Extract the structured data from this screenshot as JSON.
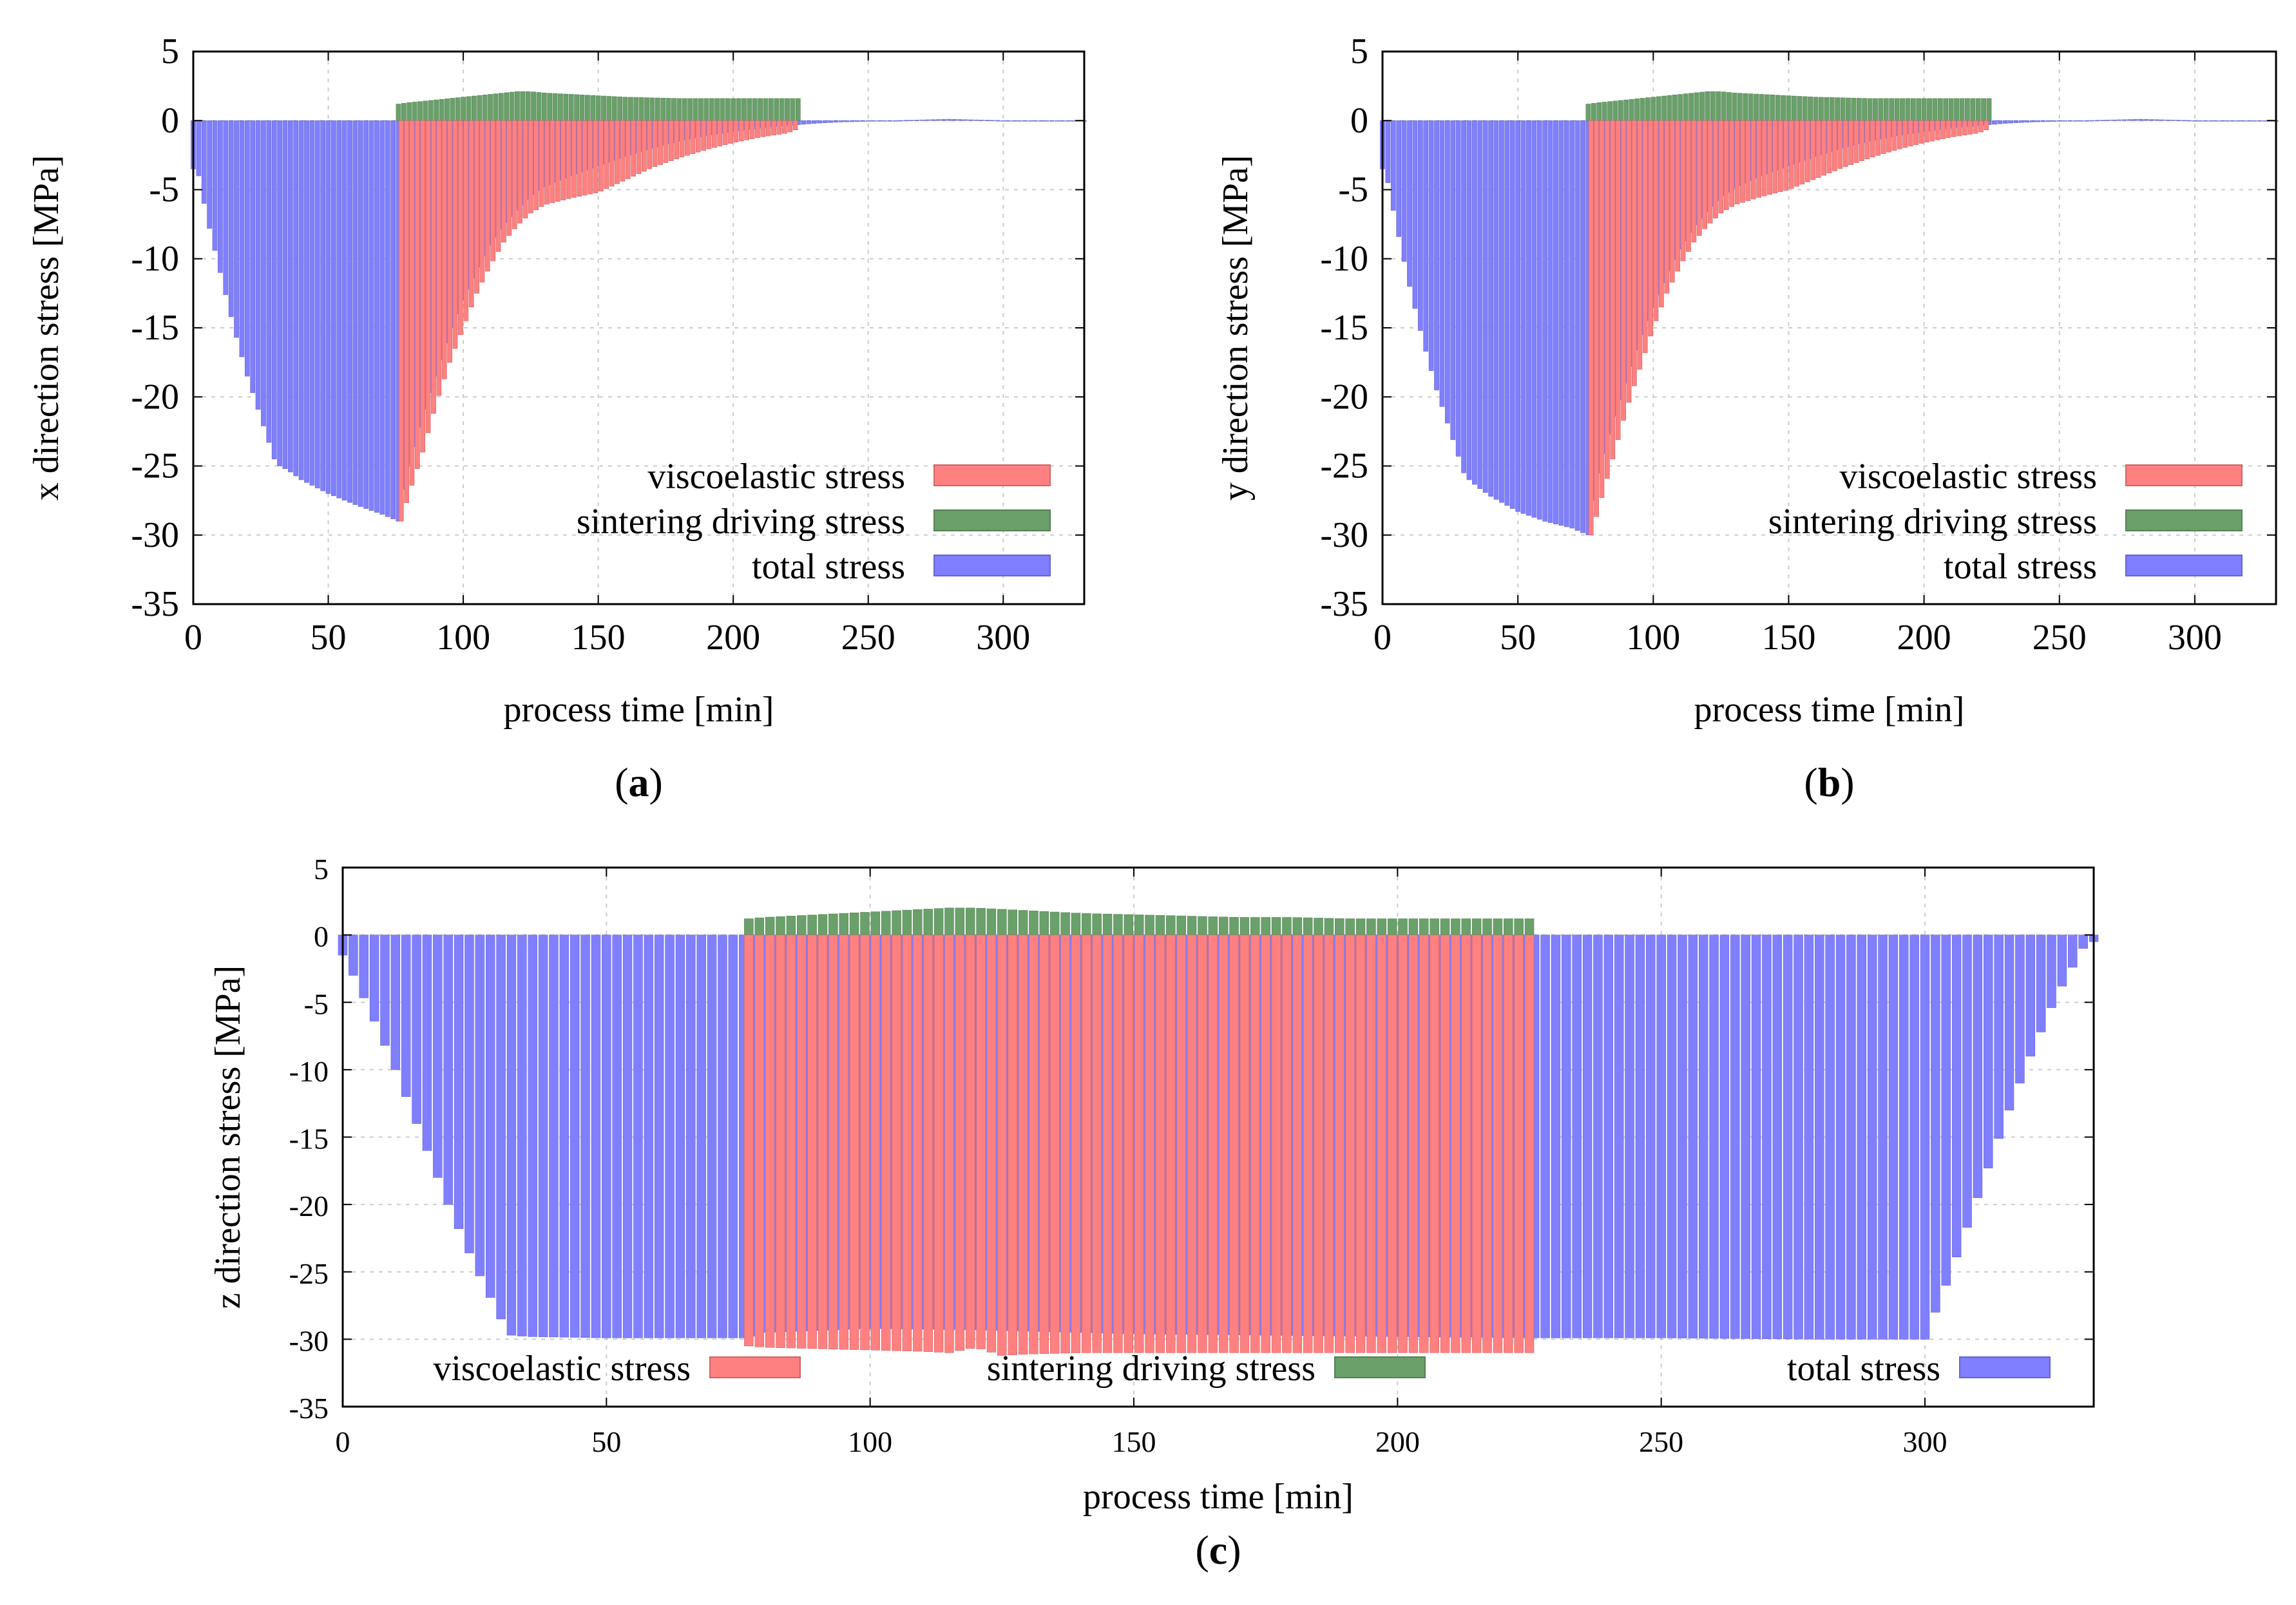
{
  "chart_data": [
    {
      "type": "area",
      "panel_label": "a",
      "xlabel": "process time [min]",
      "ylabel": "x direction stress [MPa]",
      "xlim": [
        0,
        330
      ],
      "ylim": [
        -35,
        5
      ],
      "xticks": [
        0,
        50,
        100,
        150,
        200,
        250,
        300
      ],
      "yticks": [
        5,
        0,
        -5,
        -10,
        -15,
        -20,
        -25,
        -30,
        -35
      ],
      "grid": true,
      "legend_position": "bottom-right",
      "series": [
        {
          "name": "viscoelastic stress",
          "color": "#ff8080",
          "x": [
            77,
            80,
            85,
            90,
            95,
            100,
            105,
            110,
            115,
            120,
            125,
            130,
            140,
            150,
            160,
            170,
            180,
            190,
            200,
            210,
            220,
            224
          ],
          "y": [
            -29,
            -27,
            -24,
            -20.5,
            -17.5,
            -15,
            -12.5,
            -10.5,
            -8.8,
            -7.6,
            -6.7,
            -6.1,
            -5.6,
            -5.2,
            -4.3,
            -3.4,
            -2.7,
            -2.1,
            -1.6,
            -1.2,
            -0.9,
            -0.6
          ]
        },
        {
          "name": "sintering driving stress",
          "color": "#6aa06a",
          "x": [
            76,
            80,
            90,
            100,
            110,
            120,
            125,
            130,
            140,
            150,
            160,
            180,
            200,
            224
          ],
          "y": [
            1.2,
            1.3,
            1.5,
            1.7,
            1.9,
            2.1,
            2.1,
            2.0,
            1.9,
            1.8,
            1.7,
            1.6,
            1.6,
            1.6
          ]
        },
        {
          "name": "total stress",
          "color": "#7f7fff",
          "x": [
            0,
            2,
            5,
            10,
            15,
            20,
            25,
            30,
            32,
            35,
            40,
            50,
            60,
            70,
            76,
            77,
            80,
            85,
            90,
            95,
            100,
            105,
            110,
            115,
            120,
            125,
            130,
            140,
            150,
            160,
            170,
            180,
            190,
            200,
            210,
            220,
            224,
            230,
            240,
            250,
            260,
            270,
            280,
            290,
            300,
            330
          ],
          "y": [
            -3.5,
            -4,
            -7,
            -11,
            -15,
            -18.5,
            -21.5,
            -24.5,
            -25,
            -25.3,
            -26,
            -27,
            -27.8,
            -28.5,
            -29,
            -27.5,
            -25,
            -21.5,
            -18.5,
            -15.5,
            -13,
            -11,
            -9,
            -7.6,
            -6.5,
            -5.5,
            -4.8,
            -4,
            -3.3,
            -2.6,
            -2,
            -1.5,
            -1.1,
            -0.8,
            -0.55,
            -0.35,
            -0.3,
            -0.2,
            -0.1,
            -0.05,
            0,
            0.05,
            0.1,
            0.05,
            0,
            0
          ]
        }
      ]
    },
    {
      "type": "area",
      "panel_label": "b",
      "xlabel": "process time [min]",
      "ylabel": "y direction stress [MPa]",
      "xlim": [
        0,
        330
      ],
      "ylim": [
        -35,
        5
      ],
      "xticks": [
        0,
        50,
        100,
        150,
        200,
        250,
        300
      ],
      "yticks": [
        5,
        0,
        -5,
        -10,
        -15,
        -20,
        -25,
        -30,
        -35
      ],
      "grid": true,
      "legend_position": "bottom-right",
      "series": [
        {
          "name": "viscoelastic stress",
          "color": "#ff8080",
          "x": [
            77,
            80,
            85,
            90,
            95,
            100,
            105,
            110,
            115,
            120,
            125,
            130,
            140,
            150,
            160,
            170,
            180,
            190,
            200,
            210,
            220,
            224
          ],
          "y": [
            -30,
            -28,
            -24.5,
            -21,
            -18,
            -15,
            -12.5,
            -10.5,
            -8.8,
            -7.6,
            -6.7,
            -6.1,
            -5.5,
            -5,
            -4.2,
            -3.4,
            -2.7,
            -2.1,
            -1.6,
            -1.2,
            -0.9,
            -0.6
          ]
        },
        {
          "name": "sintering driving stress",
          "color": "#6aa06a",
          "x": [
            76,
            80,
            90,
            100,
            110,
            120,
            125,
            130,
            140,
            150,
            160,
            180,
            200,
            224
          ],
          "y": [
            1.2,
            1.3,
            1.5,
            1.7,
            1.9,
            2.1,
            2.1,
            2.0,
            1.9,
            1.8,
            1.7,
            1.6,
            1.6,
            1.6
          ]
        },
        {
          "name": "total stress",
          "color": "#7f7fff",
          "x": [
            0,
            2,
            5,
            10,
            15,
            20,
            25,
            30,
            32,
            35,
            40,
            50,
            60,
            70,
            76,
            77,
            80,
            85,
            90,
            95,
            100,
            105,
            110,
            115,
            120,
            125,
            130,
            140,
            150,
            160,
            170,
            180,
            190,
            200,
            210,
            220,
            224,
            230,
            240,
            250,
            260,
            270,
            280,
            290,
            300,
            330
          ],
          "y": [
            -3.5,
            -4.5,
            -7.5,
            -12,
            -16,
            -19.5,
            -22.5,
            -25.5,
            -26,
            -26.5,
            -27.2,
            -28.3,
            -29,
            -29.5,
            -30,
            -28.5,
            -25.5,
            -22,
            -19,
            -16,
            -13.5,
            -11.3,
            -9.3,
            -7.8,
            -6.6,
            -5.6,
            -4.9,
            -4,
            -3.3,
            -2.6,
            -2,
            -1.5,
            -1.1,
            -0.8,
            -0.55,
            -0.35,
            -0.3,
            -0.2,
            -0.1,
            -0.05,
            0,
            0.05,
            0.1,
            0.05,
            0,
            0
          ]
        }
      ]
    },
    {
      "type": "area",
      "panel_label": "c",
      "xlabel": "process time [min]",
      "ylabel": "z direction stress [MPa]",
      "xlim": [
        0,
        332
      ],
      "ylim": [
        -35,
        5
      ],
      "xticks": [
        0,
        50,
        100,
        150,
        200,
        250,
        300
      ],
      "yticks": [
        5,
        0,
        -5,
        -10,
        -15,
        -20,
        -25,
        -30,
        -35
      ],
      "grid": true,
      "legend_position": "bottom",
      "series": [
        {
          "name": "viscoelastic stress",
          "color": "#ff8080",
          "x": [
            77,
            80,
            90,
            100,
            110,
            115,
            120,
            125,
            130,
            140,
            150,
            160,
            170,
            180,
            190,
            200,
            210,
            220,
            225
          ],
          "y": [
            -30.5,
            -30.6,
            -30.7,
            -30.8,
            -30.9,
            -31,
            -30.6,
            -31.2,
            -31.1,
            -31,
            -31,
            -31,
            -31,
            -31,
            -31,
            -31,
            -31,
            -31,
            -31
          ]
        },
        {
          "name": "sintering driving stress",
          "color": "#6aa06a",
          "x": [
            77,
            80,
            90,
            100,
            110,
            115,
            120,
            125,
            130,
            140,
            150,
            160,
            170,
            180,
            190,
            200,
            210,
            220,
            225
          ],
          "y": [
            1.2,
            1.3,
            1.5,
            1.7,
            1.9,
            2.0,
            2.0,
            1.9,
            1.8,
            1.6,
            1.5,
            1.4,
            1.3,
            1.3,
            1.2,
            1.2,
            1.2,
            1.2,
            1.2
          ]
        },
        {
          "name": "total stress",
          "color": "#7f7fff",
          "x": [
            0,
            2,
            5,
            10,
            15,
            20,
            25,
            30,
            32,
            35,
            50,
            77,
            80,
            100,
            120,
            150,
            200,
            225,
            250,
            280,
            300,
            305,
            310,
            315,
            320,
            325,
            330,
            332
          ],
          "y": [
            -1.5,
            -3,
            -5.5,
            -10,
            -15,
            -20,
            -24.5,
            -28.5,
            -29.7,
            -29.8,
            -29.9,
            -29.9,
            -29.5,
            -29.2,
            -29.3,
            -29.6,
            -29.8,
            -29.9,
            -29.9,
            -30,
            -30,
            -25,
            -19.5,
            -14,
            -9,
            -4.5,
            -1,
            -0.5
          ]
        }
      ]
    }
  ]
}
